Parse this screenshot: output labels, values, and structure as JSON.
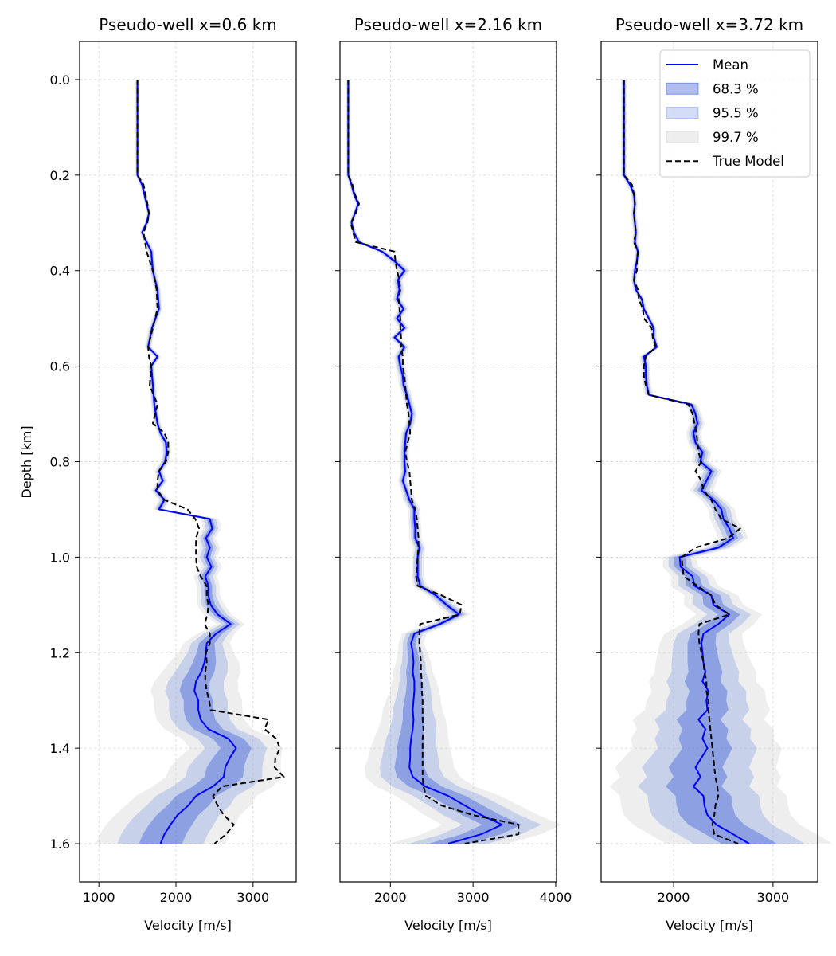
{
  "chart_data": {
    "type": "line",
    "shared_y_axis": true,
    "ylabel": "Depth [km]",
    "ylim": [
      1.68,
      -0.08
    ],
    "yticks": [
      0.0,
      0.2,
      0.4,
      0.6,
      0.8,
      1.0,
      1.2,
      1.4,
      1.6
    ],
    "yticklabels": [
      "0.0",
      "0.2",
      "0.4",
      "0.6",
      "0.8",
      "1.0",
      "1.2",
      "1.4",
      "1.6"
    ],
    "grid": true,
    "legend": {
      "placement": "top-right",
      "panel": 2,
      "entries": [
        {
          "label": "Mean",
          "kind": "line",
          "color": "#0000ff"
        },
        {
          "label": "68.3 %",
          "kind": "band",
          "color": "#2346d2"
        },
        {
          "label": "95.5 %",
          "kind": "band",
          "color": "#6e8fe0"
        },
        {
          "label": "99.7 %",
          "kind": "band",
          "color": "#c8c8c8"
        },
        {
          "label": "True Model",
          "kind": "dashed",
          "color": "#000000"
        }
      ]
    },
    "colors": {
      "mean": "#0000ff",
      "true_model": "#000000",
      "band1": "#2346d2",
      "band2": "#6e8fe0",
      "band3": "#c8c8c8"
    },
    "panels": [
      {
        "title": "Pseudo-well x=0.6 km",
        "xlabel": "Velocity [m/s]",
        "xlim": [
          750,
          3560
        ],
        "xticks": [
          1000,
          2000,
          3000
        ],
        "xticklabels": [
          "1000",
          "2000",
          "3000"
        ],
        "depth": [
          0.0,
          0.2,
          0.22,
          0.26,
          0.28,
          0.3,
          0.32,
          0.36,
          0.4,
          0.44,
          0.48,
          0.52,
          0.56,
          0.58,
          0.6,
          0.64,
          0.68,
          0.72,
          0.74,
          0.76,
          0.78,
          0.8,
          0.82,
          0.84,
          0.86,
          0.88,
          0.9,
          0.92,
          0.94,
          0.96,
          0.98,
          1.0,
          1.02,
          1.04,
          1.06,
          1.08,
          1.1,
          1.12,
          1.14,
          1.16,
          1.18,
          1.2,
          1.22,
          1.24,
          1.26,
          1.28,
          1.3,
          1.32,
          1.34,
          1.36,
          1.38,
          1.4,
          1.42,
          1.44,
          1.46,
          1.48,
          1.5,
          1.52,
          1.54,
          1.56,
          1.58,
          1.6
        ],
        "mean": [
          1500,
          1500,
          1560,
          1620,
          1650,
          1620,
          1560,
          1680,
          1700,
          1760,
          1780,
          1690,
          1640,
          1760,
          1680,
          1700,
          1720,
          1760,
          1800,
          1870,
          1880,
          1860,
          1780,
          1830,
          1740,
          1850,
          1780,
          2440,
          2470,
          2390,
          2440,
          2400,
          2460,
          2380,
          2420,
          2420,
          2450,
          2540,
          2710,
          2520,
          2400,
          2390,
          2370,
          2330,
          2260,
          2240,
          2290,
          2290,
          2320,
          2420,
          2680,
          2780,
          2700,
          2640,
          2620,
          2480,
          2260,
          2160,
          2020,
          1930,
          1850,
          1800
        ],
        "sd1": [
          10,
          10,
          10,
          10,
          10,
          10,
          10,
          15,
          15,
          15,
          15,
          15,
          15,
          15,
          15,
          15,
          15,
          15,
          15,
          20,
          20,
          20,
          20,
          20,
          20,
          25,
          25,
          40,
          40,
          40,
          45,
          45,
          45,
          50,
          50,
          50,
          60,
          60,
          60,
          80,
          100,
          120,
          150,
          170,
          180,
          190,
          190,
          190,
          190,
          190,
          200,
          200,
          220,
          240,
          250,
          260,
          260,
          270,
          270,
          280,
          280,
          280
        ],
        "true": [
          1500,
          1500,
          1580,
          1630,
          1650,
          1630,
          1580,
          1620,
          1700,
          1750,
          1760,
          1700,
          1640,
          1650,
          1680,
          1660,
          1760,
          1700,
          1850,
          1900,
          1900,
          1870,
          1780,
          1760,
          1760,
          1850,
          2150,
          2250,
          2300,
          2260,
          2260,
          2260,
          2270,
          2320,
          2400,
          2400,
          2420,
          2410,
          2370,
          2440,
          2440,
          2390,
          2400,
          2380,
          2380,
          2400,
          2430,
          2450,
          3200,
          3150,
          3300,
          3350,
          3290,
          3280,
          3400,
          2600,
          2480,
          2540,
          2620,
          2750,
          2650,
          2500
        ]
      },
      {
        "title": "Pseudo-well x=2.16 km",
        "xlabel": "Velocity [m/s]",
        "xlim": [
          1390,
          4010
        ],
        "xticks": [
          2000,
          3000,
          4000
        ],
        "xticklabels": [
          "2000",
          "3000",
          "4000"
        ],
        "depth": [
          0.0,
          0.2,
          0.22,
          0.24,
          0.26,
          0.28,
          0.3,
          0.32,
          0.34,
          0.36,
          0.38,
          0.4,
          0.42,
          0.44,
          0.46,
          0.48,
          0.5,
          0.52,
          0.54,
          0.56,
          0.58,
          0.6,
          0.62,
          0.64,
          0.66,
          0.68,
          0.7,
          0.72,
          0.74,
          0.76,
          0.78,
          0.8,
          0.82,
          0.84,
          0.86,
          0.88,
          0.9,
          0.92,
          0.94,
          0.96,
          0.98,
          1.0,
          1.02,
          1.04,
          1.06,
          1.08,
          1.1,
          1.12,
          1.14,
          1.16,
          1.18,
          1.2,
          1.22,
          1.24,
          1.26,
          1.28,
          1.3,
          1.32,
          1.34,
          1.36,
          1.38,
          1.4,
          1.42,
          1.44,
          1.46,
          1.48,
          1.5,
          1.52,
          1.54,
          1.56,
          1.58,
          1.6
        ],
        "mean": [
          1490,
          1490,
          1530,
          1560,
          1610,
          1570,
          1530,
          1560,
          1620,
          1900,
          2050,
          2170,
          2090,
          2110,
          2080,
          2160,
          2080,
          2170,
          2050,
          2170,
          2100,
          2120,
          2150,
          2160,
          2200,
          2230,
          2260,
          2240,
          2190,
          2180,
          2170,
          2170,
          2180,
          2150,
          2190,
          2230,
          2290,
          2290,
          2300,
          2300,
          2350,
          2330,
          2330,
          2330,
          2360,
          2550,
          2680,
          2830,
          2600,
          2290,
          2250,
          2270,
          2280,
          2270,
          2290,
          2290,
          2280,
          2270,
          2280,
          2270,
          2250,
          2240,
          2240,
          2230,
          2270,
          2420,
          2700,
          2900,
          3100,
          3350,
          3100,
          2700
        ],
        "sd1": [
          10,
          10,
          10,
          10,
          10,
          10,
          10,
          10,
          15,
          20,
          25,
          25,
          20,
          20,
          20,
          20,
          20,
          20,
          20,
          20,
          20,
          20,
          20,
          20,
          20,
          20,
          20,
          20,
          20,
          20,
          20,
          20,
          20,
          20,
          20,
          25,
          25,
          25,
          25,
          25,
          25,
          25,
          25,
          25,
          30,
          35,
          40,
          45,
          45,
          50,
          50,
          60,
          70,
          80,
          90,
          100,
          110,
          120,
          130,
          140,
          150,
          160,
          170,
          180,
          190,
          200,
          210,
          220,
          230,
          240,
          240,
          240
        ],
        "true": [
          1490,
          1490,
          1540,
          1570,
          1620,
          1580,
          1520,
          1550,
          1580,
          2050,
          2060,
          2080,
          2110,
          2120,
          2100,
          2110,
          2120,
          2120,
          2130,
          2130,
          2150,
          2150,
          2170,
          2180,
          2190,
          2200,
          2220,
          2230,
          2240,
          2210,
          2180,
          2200,
          2230,
          2240,
          2250,
          2260,
          2300,
          2320,
          2330,
          2340,
          2340,
          2330,
          2320,
          2310,
          2330,
          2620,
          2860,
          2840,
          2360,
          2350,
          2350,
          2360,
          2370,
          2370,
          2380,
          2380,
          2390,
          2390,
          2390,
          2400,
          2390,
          2390,
          2390,
          2390,
          2390,
          2400,
          2430,
          2620,
          3000,
          3550,
          3550,
          2900
        ]
      },
      {
        "title": "Pseudo-well x=3.72 km",
        "xlabel": "Velocity [m/s]",
        "xlim": [
          1270,
          3450
        ],
        "xticks": [
          2000,
          3000
        ],
        "xticklabels": [
          "2000",
          "3000"
        ],
        "depth": [
          0.0,
          0.2,
          0.22,
          0.24,
          0.26,
          0.28,
          0.3,
          0.32,
          0.34,
          0.36,
          0.38,
          0.4,
          0.42,
          0.44,
          0.46,
          0.48,
          0.5,
          0.52,
          0.54,
          0.56,
          0.58,
          0.6,
          0.62,
          0.64,
          0.66,
          0.68,
          0.7,
          0.72,
          0.74,
          0.76,
          0.78,
          0.8,
          0.82,
          0.84,
          0.86,
          0.88,
          0.9,
          0.92,
          0.94,
          0.96,
          0.98,
          1.0,
          1.02,
          1.04,
          1.06,
          1.08,
          1.1,
          1.12,
          1.14,
          1.16,
          1.18,
          1.2,
          1.22,
          1.24,
          1.26,
          1.28,
          1.3,
          1.32,
          1.34,
          1.36,
          1.38,
          1.4,
          1.42,
          1.44,
          1.46,
          1.48,
          1.5,
          1.52,
          1.54,
          1.56,
          1.58,
          1.6
        ],
        "mean": [
          1500,
          1500,
          1560,
          1600,
          1610,
          1600,
          1610,
          1620,
          1610,
          1640,
          1630,
          1610,
          1600,
          1620,
          1680,
          1700,
          1750,
          1800,
          1800,
          1830,
          1700,
          1720,
          1720,
          1730,
          1750,
          2180,
          2220,
          2240,
          2200,
          2220,
          2290,
          2270,
          2380,
          2330,
          2280,
          2400,
          2480,
          2500,
          2560,
          2600,
          2450,
          2060,
          2070,
          2190,
          2210,
          2380,
          2400,
          2560,
          2450,
          2300,
          2280,
          2290,
          2300,
          2320,
          2290,
          2350,
          2330,
          2340,
          2250,
          2320,
          2290,
          2340,
          2280,
          2220,
          2270,
          2200,
          2300,
          2310,
          2340,
          2430,
          2600,
          2760
        ],
        "sd1": [
          10,
          10,
          10,
          10,
          10,
          10,
          10,
          10,
          10,
          10,
          10,
          10,
          10,
          10,
          10,
          10,
          10,
          10,
          10,
          10,
          15,
          15,
          15,
          15,
          15,
          20,
          20,
          25,
          25,
          25,
          30,
          30,
          35,
          35,
          40,
          40,
          45,
          45,
          50,
          50,
          50,
          55,
          60,
          70,
          80,
          90,
          100,
          110,
          120,
          130,
          140,
          150,
          160,
          170,
          180,
          190,
          200,
          210,
          220,
          230,
          240,
          250,
          260,
          270,
          270,
          280,
          280,
          280,
          280,
          280,
          280,
          280
        ],
        "true": [
          1500,
          1500,
          1580,
          1600,
          1610,
          1600,
          1610,
          1620,
          1600,
          1640,
          1630,
          1630,
          1600,
          1640,
          1650,
          1690,
          1700,
          1780,
          1790,
          1820,
          1720,
          1700,
          1700,
          1720,
          1750,
          2150,
          2190,
          2210,
          2230,
          2240,
          2250,
          2280,
          2220,
          2280,
          2300,
          2380,
          2420,
          2480,
          2670,
          2550,
          2220,
          2080,
          2090,
          2100,
          2240,
          2380,
          2420,
          2560,
          2260,
          2250,
          2260,
          2280,
          2300,
          2310,
          2330,
          2330,
          2350,
          2350,
          2360,
          2370,
          2380,
          2390,
          2400,
          2410,
          2420,
          2440,
          2450,
          2420,
          2410,
          2390,
          2410,
          2650
        ]
      }
    ]
  }
}
